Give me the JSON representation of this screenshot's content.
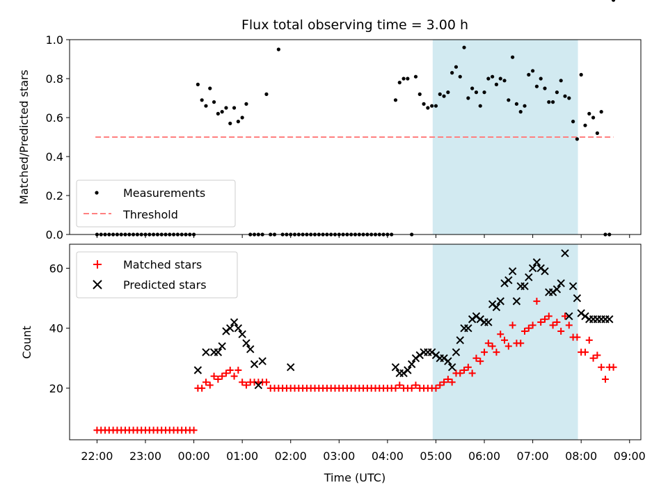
{
  "colors": {
    "measurement": "#000000",
    "threshold": "#ff7f7f",
    "matched": "#ff0000",
    "predicted": "#000000",
    "highlight": "#add8e6"
  },
  "chart_data": [
    {
      "type": "scatter",
      "title": "Flux total observing time = 3.00 h",
      "xlabel": "",
      "ylabel": "Matched/Predicted stars",
      "ylim": [
        0,
        1.0
      ],
      "yticks": [
        "0.0",
        "0.2",
        "0.4",
        "0.6",
        "0.8",
        "1.0"
      ],
      "xlim": [
        "21:26",
        "09:14"
      ],
      "grid": false,
      "legend_position": "lower-left",
      "highlight_span": [
        "04:56",
        "07:56"
      ],
      "threshold": {
        "name": "Threshold",
        "y": 0.5,
        "x_start": "21:58",
        "x_end": "08:40"
      },
      "series": [
        {
          "name": "Measurements",
          "x_minutes_from_midnight": [
            -120,
            -115,
            -110,
            -105,
            -100,
            -95,
            -90,
            -85,
            -80,
            -75,
            -70,
            -65,
            -60,
            -55,
            -50,
            -45,
            -40,
            -35,
            -30,
            -25,
            -20,
            -15,
            -10,
            -5,
            0,
            5,
            10,
            15,
            20,
            25,
            30,
            35,
            40,
            45,
            50,
            55,
            60,
            65,
            70,
            75,
            80,
            85,
            90,
            95,
            100,
            105,
            110,
            115,
            120,
            125,
            130,
            135,
            140,
            145,
            150,
            155,
            160,
            165,
            170,
            175,
            180,
            185,
            190,
            195,
            200,
            205,
            210,
            215,
            220,
            225,
            230,
            235,
            240,
            245,
            250,
            255,
            260,
            265,
            270,
            275,
            280,
            285,
            290,
            295,
            300,
            305,
            310,
            315,
            320,
            325,
            330,
            335,
            340,
            345,
            350,
            355,
            360,
            365,
            370,
            375,
            380,
            385,
            390,
            395,
            400,
            405,
            410,
            415,
            420,
            425,
            430,
            435,
            440,
            445,
            450,
            455,
            460,
            465,
            470,
            475,
            480,
            485,
            490,
            495,
            500,
            505,
            510,
            515,
            520
          ],
          "y": [
            0,
            0,
            0,
            0,
            0,
            0,
            0,
            0,
            0,
            0,
            0,
            0,
            0,
            0,
            0,
            0,
            0,
            0,
            0,
            0,
            0,
            0,
            0,
            0,
            0,
            0.77,
            0.69,
            0.66,
            0.75,
            0.68,
            0.62,
            0.63,
            0.65,
            0.57,
            0.65,
            0.58,
            0.6,
            0.67,
            0,
            0,
            0,
            0,
            0.72,
            0,
            0,
            0.95,
            0,
            0,
            0,
            0,
            0,
            0,
            0,
            0,
            0,
            0,
            0,
            0,
            0,
            0,
            0,
            0,
            0,
            0,
            0,
            0,
            0,
            0,
            0,
            0,
            0,
            0,
            0,
            0,
            0.69,
            0.78,
            0.8,
            0.8,
            0,
            0.81,
            0.72,
            0.67,
            0.65,
            0.66,
            0.66,
            0.72,
            0.71,
            0.73,
            0.83,
            0.86,
            0.81,
            0.96,
            0.7,
            0.75,
            0.73,
            0.66,
            0.73,
            0.8,
            0.81,
            0.77,
            0.8,
            0.79,
            0.69,
            0.91,
            0.67,
            0.63,
            0.66,
            0.82,
            0.84,
            0.76,
            0.8,
            0.75,
            0.68,
            0.68,
            0.73,
            0.79,
            0.71,
            0.7,
            0.58,
            0.49,
            0.82,
            0.56,
            0.62,
            0.6,
            0.52,
            0.63,
            0,
            0
          ]
        }
      ]
    },
    {
      "type": "scatter",
      "title": "",
      "xlabel": "Time (UTC)",
      "ylabel": "Count",
      "ylim": [
        2.8,
        68
      ],
      "yticks": [
        "20",
        "40",
        "60"
      ],
      "xticks": [
        "22:00",
        "23:00",
        "00:00",
        "01:00",
        "02:00",
        "03:00",
        "04:00",
        "05:00",
        "06:00",
        "07:00",
        "08:00",
        "09:00"
      ],
      "xlim": [
        "21:26",
        "09:14"
      ],
      "grid": false,
      "legend_position": "upper-left",
      "highlight_span": [
        "04:56",
        "07:56"
      ],
      "series": [
        {
          "name": "Matched stars",
          "x_minutes_from_midnight": [
            -120,
            -115,
            -110,
            -105,
            -100,
            -95,
            -90,
            -85,
            -80,
            -75,
            -70,
            -65,
            -60,
            -55,
            -50,
            -45,
            -40,
            -35,
            -30,
            -25,
            -20,
            -15,
            -10,
            -5,
            0,
            5,
            10,
            15,
            20,
            25,
            30,
            35,
            40,
            45,
            50,
            55,
            60,
            65,
            70,
            75,
            80,
            85,
            90,
            95,
            100,
            105,
            110,
            115,
            120,
            125,
            130,
            135,
            140,
            145,
            150,
            155,
            160,
            165,
            170,
            175,
            180,
            185,
            190,
            195,
            200,
            205,
            210,
            215,
            220,
            225,
            230,
            235,
            240,
            245,
            250,
            255,
            260,
            265,
            270,
            275,
            280,
            285,
            290,
            295,
            300,
            305,
            310,
            315,
            320,
            325,
            330,
            335,
            340,
            345,
            350,
            355,
            360,
            365,
            370,
            375,
            380,
            385,
            390,
            395,
            400,
            405,
            410,
            415,
            420,
            425,
            430,
            435,
            440,
            445,
            450,
            455,
            460,
            465,
            470,
            475,
            480,
            485,
            490,
            495,
            500,
            505,
            510,
            515,
            520
          ],
          "y": [
            6,
            6,
            6,
            6,
            6,
            6,
            6,
            6,
            6,
            6,
            6,
            6,
            6,
            6,
            6,
            6,
            6,
            6,
            6,
            6,
            6,
            6,
            6,
            6,
            6,
            20,
            20,
            22,
            21,
            24,
            23,
            24,
            25,
            26,
            24,
            26,
            22,
            21,
            22,
            22,
            22,
            22,
            22,
            20,
            20,
            20,
            20,
            20,
            20,
            20,
            20,
            20,
            20,
            20,
            20,
            20,
            20,
            20,
            20,
            20,
            20,
            20,
            20,
            20,
            20,
            20,
            20,
            20,
            20,
            20,
            20,
            20,
            20,
            20,
            20,
            21,
            20,
            20,
            20,
            21,
            20,
            20,
            20,
            20,
            20,
            21,
            22,
            23,
            22,
            25,
            25,
            26,
            27,
            25,
            30,
            29,
            32,
            35,
            34,
            32,
            38,
            36,
            34,
            41,
            35,
            35,
            39,
            40,
            41,
            49,
            42,
            43,
            44,
            41,
            42,
            39,
            44,
            41,
            37,
            37,
            32,
            32,
            36,
            30,
            31,
            27,
            23,
            27,
            27,
            27
          ]
        },
        {
          "name": "Predicted stars",
          "x_minutes_from_midnight": [
            5,
            15,
            25,
            30,
            35,
            40,
            45,
            50,
            55,
            60,
            65,
            70,
            75,
            80,
            85,
            120,
            250,
            255,
            260,
            265,
            270,
            275,
            280,
            285,
            290,
            295,
            300,
            305,
            310,
            315,
            320,
            325,
            330,
            335,
            340,
            345,
            350,
            355,
            360,
            365,
            370,
            375,
            380,
            385,
            390,
            395,
            400,
            405,
            410,
            415,
            420,
            425,
            430,
            435,
            440,
            445,
            450,
            455,
            460,
            465,
            470,
            475,
            480,
            485,
            490,
            495,
            500,
            505,
            510,
            515
          ],
          "y": [
            26,
            32,
            32,
            32,
            34,
            39,
            40,
            42,
            40,
            38,
            35,
            33,
            28,
            21,
            29,
            27,
            27,
            25,
            25,
            26,
            28,
            30,
            31,
            32,
            32,
            32,
            31,
            30,
            30,
            29,
            27,
            32,
            36,
            40,
            40,
            43,
            44,
            43,
            42,
            42,
            48,
            47,
            49,
            55,
            56,
            59,
            49,
            54,
            54,
            57,
            60,
            62,
            60,
            59,
            52,
            52,
            53,
            55,
            65,
            44,
            54,
            50,
            45,
            44,
            43,
            43,
            43,
            43,
            43,
            43
          ]
        }
      ]
    }
  ]
}
